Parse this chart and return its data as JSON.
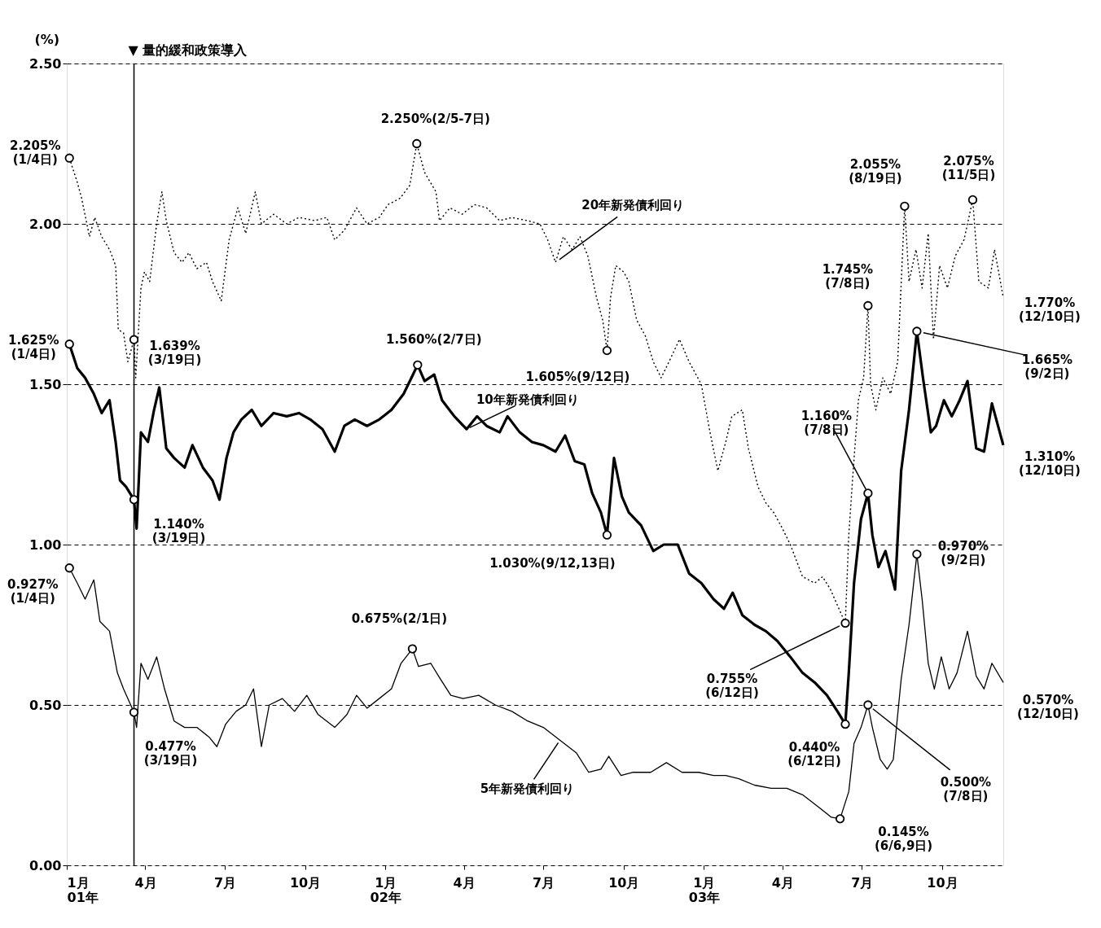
{
  "chart_data": {
    "type": "line",
    "ylabel": "(%)",
    "xlim": [
      "2001-01-01",
      "2003-12-10"
    ],
    "xticks": [
      {
        "value": "2001-01-01",
        "label": "1月\n01年"
      },
      {
        "value": "2001-04-01",
        "label": "4月"
      },
      {
        "value": "2001-07-01",
        "label": "7月"
      },
      {
        "value": "2001-10-01",
        "label": "10月"
      },
      {
        "value": "2002-01-01",
        "label": "1月\n02年"
      },
      {
        "value": "2002-04-01",
        "label": "4月"
      },
      {
        "value": "2002-07-01",
        "label": "7月"
      },
      {
        "value": "2002-10-01",
        "label": "10月"
      },
      {
        "value": "2003-01-01",
        "label": "1月\n03年"
      },
      {
        "value": "2003-04-01",
        "label": "4月"
      },
      {
        "value": "2003-07-01",
        "label": "7月"
      },
      {
        "value": "2003-10-01",
        "label": "10月"
      }
    ],
    "ylim": [
      0,
      2.5
    ],
    "yticks": [
      {
        "value": 0,
        "label": "0.00"
      },
      {
        "value": 0.5,
        "label": "0.50"
      },
      {
        "value": 1,
        "label": "1.00"
      },
      {
        "value": 1.5,
        "label": "1.50"
      },
      {
        "value": 2,
        "label": "2.00"
      },
      {
        "value": 2.5,
        "label": "2.50"
      }
    ],
    "grid": "y",
    "ref_lines": [
      {
        "axis": "x",
        "value": "2001-03-19",
        "label": "▼ 量的緩和政策導入"
      }
    ],
    "series": [
      {
        "name": "20年新発債利回り",
        "color": "#000000",
        "line_style": "dotted",
        "x": [
          "2001-01-04",
          "2001-01-13",
          "2001-01-18",
          "2001-01-27",
          "2001-02-02",
          "2001-02-10",
          "2001-02-19",
          "2001-02-26",
          "2001-03-01",
          "2001-03-07",
          "2001-03-12",
          "2001-03-19",
          "2001-03-21",
          "2001-03-27",
          "2001-03-31",
          "2001-04-06",
          "2001-04-14",
          "2001-04-20",
          "2001-04-25",
          "2001-05-04",
          "2001-05-13",
          "2001-05-21",
          "2001-05-30",
          "2001-06-10",
          "2001-06-17",
          "2001-06-27",
          "2001-07-06",
          "2001-07-16",
          "2001-07-25",
          "2001-08-05",
          "2001-08-12",
          "2001-08-26",
          "2001-09-10",
          "2001-09-24",
          "2001-10-12",
          "2001-10-26",
          "2001-11-04",
          "2001-11-15",
          "2001-11-29",
          "2001-12-11",
          "2001-12-25",
          "2002-01-04",
          "2002-01-18",
          "2002-01-29",
          "2002-02-06",
          "2002-02-15",
          "2002-02-28",
          "2002-03-04",
          "2002-03-16",
          "2002-03-30",
          "2002-04-13",
          "2002-04-27",
          "2002-05-12",
          "2002-05-26",
          "2002-06-13",
          "2002-06-27",
          "2002-07-06",
          "2002-07-15",
          "2002-07-24",
          "2002-08-03",
          "2002-08-12",
          "2002-08-21",
          "2002-08-31",
          "2002-09-07",
          "2002-09-12",
          "2002-09-16",
          "2002-09-22",
          "2002-10-01",
          "2002-10-07",
          "2002-10-16",
          "2002-10-26",
          "2002-11-04",
          "2002-11-13",
          "2002-11-22",
          "2002-12-04",
          "2002-12-15",
          "2002-12-29",
          "2003-01-08",
          "2003-01-17",
          "2003-01-26",
          "2003-02-02",
          "2003-02-14",
          "2003-02-21",
          "2003-03-04",
          "2003-03-13",
          "2003-03-22",
          "2003-04-01",
          "2003-04-10",
          "2003-04-24",
          "2003-05-08",
          "2003-05-17",
          "2003-05-26",
          "2003-06-12",
          "2003-06-16",
          "2003-06-21",
          "2003-06-27",
          "2003-07-03",
          "2003-07-08",
          "2003-07-11",
          "2003-07-17",
          "2003-07-25",
          "2003-08-03",
          "2003-08-11",
          "2003-08-19",
          "2003-08-24",
          "2003-09-01",
          "2003-09-08",
          "2003-09-15",
          "2003-09-21",
          "2003-09-28",
          "2003-10-07",
          "2003-10-16",
          "2003-10-26",
          "2003-11-05",
          "2003-11-12",
          "2003-11-23",
          "2003-11-30",
          "2003-12-10"
        ],
        "values": [
          2.205,
          2.13,
          2.08,
          1.96,
          2.02,
          1.96,
          1.92,
          1.87,
          1.67,
          1.66,
          1.57,
          1.639,
          1.52,
          1.8,
          1.85,
          1.82,
          2.0,
          2.1,
          2.01,
          1.91,
          1.88,
          1.91,
          1.86,
          1.88,
          1.82,
          1.76,
          1.95,
          2.05,
          1.97,
          2.1,
          2.0,
          2.03,
          2.0,
          2.02,
          2.01,
          2.02,
          1.95,
          1.98,
          2.05,
          2.0,
          2.02,
          2.06,
          2.08,
          2.12,
          2.25,
          2.16,
          2.1,
          2.01,
          2.05,
          2.03,
          2.06,
          2.05,
          2.01,
          2.02,
          2.01,
          2.0,
          1.95,
          1.88,
          1.96,
          1.92,
          1.96,
          1.9,
          1.77,
          1.7,
          1.605,
          1.77,
          1.87,
          1.85,
          1.82,
          1.7,
          1.65,
          1.57,
          1.52,
          1.57,
          1.64,
          1.57,
          1.5,
          1.35,
          1.23,
          1.32,
          1.4,
          1.42,
          1.3,
          1.18,
          1.13,
          1.1,
          1.05,
          1.0,
          0.9,
          0.88,
          0.9,
          0.86,
          0.755,
          1.03,
          1.23,
          1.45,
          1.52,
          1.745,
          1.5,
          1.42,
          1.52,
          1.47,
          1.57,
          2.055,
          1.82,
          1.92,
          1.8,
          1.97,
          1.64,
          1.87,
          1.8,
          1.9,
          1.95,
          2.075,
          1.82,
          1.8,
          1.92,
          1.77
        ]
      },
      {
        "name": "10年新発債利回り",
        "color": "#000000",
        "line_style": "solid",
        "x": [
          "2001-01-04",
          "2001-01-13",
          "2001-01-22",
          "2001-02-01",
          "2001-02-10",
          "2001-02-19",
          "2001-02-26",
          "2001-03-03",
          "2001-03-10",
          "2001-03-19",
          "2001-03-22",
          "2001-03-27",
          "2001-04-04",
          "2001-04-11",
          "2001-04-17",
          "2001-04-25",
          "2001-05-04",
          "2001-05-16",
          "2001-05-25",
          "2001-06-06",
          "2001-06-17",
          "2001-06-25",
          "2001-07-03",
          "2001-07-11",
          "2001-07-20",
          "2001-08-01",
          "2001-08-12",
          "2001-08-26",
          "2001-09-10",
          "2001-09-24",
          "2001-10-07",
          "2001-10-21",
          "2001-11-04",
          "2001-11-15",
          "2001-11-27",
          "2001-12-11",
          "2001-12-25",
          "2002-01-08",
          "2002-01-22",
          "2002-02-07",
          "2002-02-15",
          "2002-02-26",
          "2002-03-07",
          "2002-03-21",
          "2002-04-04",
          "2002-04-16",
          "2002-04-27",
          "2002-05-12",
          "2002-05-21",
          "2002-06-04",
          "2002-06-18",
          "2002-07-01",
          "2002-07-15",
          "2002-07-26",
          "2002-08-06",
          "2002-08-17",
          "2002-08-26",
          "2002-09-05",
          "2002-09-12",
          "2002-09-20",
          "2002-09-29",
          "2002-10-07",
          "2002-10-21",
          "2002-11-04",
          "2002-11-16",
          "2002-12-02",
          "2002-12-15",
          "2002-12-29",
          "2003-01-12",
          "2003-01-24",
          "2003-02-03",
          "2003-02-14",
          "2003-02-28",
          "2003-03-13",
          "2003-03-26",
          "2003-04-10",
          "2003-04-24",
          "2003-05-08",
          "2003-05-22",
          "2003-06-03",
          "2003-06-12",
          "2003-06-16",
          "2003-06-22",
          "2003-06-30",
          "2003-07-08",
          "2003-07-13",
          "2003-07-20",
          "2003-07-28",
          "2003-08-08",
          "2003-08-15",
          "2003-08-24",
          "2003-09-02",
          "2003-09-09",
          "2003-09-18",
          "2003-09-24",
          "2003-10-03",
          "2003-10-12",
          "2003-10-21",
          "2003-10-30",
          "2003-11-09",
          "2003-11-18",
          "2003-11-27",
          "2003-12-10"
        ],
        "values": [
          1.625,
          1.55,
          1.52,
          1.47,
          1.41,
          1.45,
          1.32,
          1.2,
          1.18,
          1.14,
          1.05,
          1.35,
          1.32,
          1.42,
          1.49,
          1.3,
          1.27,
          1.24,
          1.31,
          1.24,
          1.2,
          1.14,
          1.27,
          1.35,
          1.39,
          1.42,
          1.37,
          1.41,
          1.4,
          1.41,
          1.39,
          1.36,
          1.29,
          1.37,
          1.39,
          1.37,
          1.39,
          1.42,
          1.47,
          1.56,
          1.51,
          1.53,
          1.45,
          1.4,
          1.36,
          1.4,
          1.37,
          1.35,
          1.4,
          1.35,
          1.32,
          1.31,
          1.29,
          1.34,
          1.26,
          1.25,
          1.16,
          1.1,
          1.03,
          1.27,
          1.15,
          1.1,
          1.06,
          0.98,
          1.0,
          1.0,
          0.91,
          0.88,
          0.83,
          0.8,
          0.85,
          0.78,
          0.75,
          0.73,
          0.7,
          0.65,
          0.6,
          0.57,
          0.53,
          0.48,
          0.44,
          0.6,
          0.88,
          1.08,
          1.16,
          1.03,
          0.93,
          0.98,
          0.86,
          1.23,
          1.42,
          1.665,
          1.52,
          1.35,
          1.37,
          1.45,
          1.4,
          1.45,
          1.51,
          1.3,
          1.29,
          1.44,
          1.31
        ]
      },
      {
        "name": "5年新発債利回り",
        "color": "#000000",
        "line_style": "solid",
        "x": [
          "2001-01-04",
          "2001-01-13",
          "2001-01-22",
          "2001-02-01",
          "2001-02-08",
          "2001-02-19",
          "2001-02-28",
          "2001-03-07",
          "2001-03-19",
          "2001-03-22",
          "2001-03-27",
          "2001-04-04",
          "2001-04-14",
          "2001-04-23",
          "2001-05-04",
          "2001-05-16",
          "2001-05-30",
          "2001-06-13",
          "2001-06-22",
          "2001-07-02",
          "2001-07-14",
          "2001-07-25",
          "2001-08-03",
          "2001-08-12",
          "2001-08-21",
          "2001-09-05",
          "2001-09-19",
          "2001-10-03",
          "2001-10-16",
          "2001-11-04",
          "2001-11-18",
          "2001-11-29",
          "2001-12-11",
          "2001-12-25",
          "2002-01-08",
          "2002-01-19",
          "2002-02-01",
          "2002-02-08",
          "2002-02-22",
          "2002-03-03",
          "2002-03-17",
          "2002-03-31",
          "2002-04-18",
          "2002-05-07",
          "2002-05-26",
          "2002-06-13",
          "2002-07-01",
          "2002-07-20",
          "2002-08-08",
          "2002-08-22",
          "2002-09-05",
          "2002-09-14",
          "2002-09-28",
          "2002-10-12",
          "2002-11-01",
          "2002-11-19",
          "2002-12-07",
          "2002-12-26",
          "2003-01-12",
          "2003-01-26",
          "2003-02-10",
          "2003-02-28",
          "2003-03-19",
          "2003-04-06",
          "2003-04-24",
          "2003-05-13",
          "2003-05-27",
          "2003-06-06",
          "2003-06-16",
          "2003-06-22",
          "2003-06-30",
          "2003-07-08",
          "2003-07-13",
          "2003-07-22",
          "2003-07-30",
          "2003-08-06",
          "2003-08-15",
          "2003-08-24",
          "2003-09-02",
          "2003-09-08",
          "2003-09-15",
          "2003-09-22",
          "2003-09-30",
          "2003-10-09",
          "2003-10-18",
          "2003-10-30",
          "2003-11-09",
          "2003-11-18",
          "2003-11-27",
          "2003-12-10"
        ],
        "values": [
          0.927,
          0.88,
          0.83,
          0.89,
          0.76,
          0.73,
          0.6,
          0.55,
          0.477,
          0.43,
          0.63,
          0.58,
          0.65,
          0.55,
          0.45,
          0.43,
          0.43,
          0.4,
          0.37,
          0.44,
          0.48,
          0.5,
          0.55,
          0.37,
          0.5,
          0.52,
          0.48,
          0.53,
          0.47,
          0.43,
          0.47,
          0.53,
          0.49,
          0.52,
          0.55,
          0.63,
          0.675,
          0.62,
          0.63,
          0.59,
          0.53,
          0.52,
          0.53,
          0.5,
          0.48,
          0.45,
          0.43,
          0.39,
          0.35,
          0.29,
          0.3,
          0.34,
          0.28,
          0.29,
          0.29,
          0.32,
          0.29,
          0.29,
          0.28,
          0.28,
          0.27,
          0.25,
          0.24,
          0.24,
          0.22,
          0.18,
          0.15,
          0.145,
          0.23,
          0.38,
          0.43,
          0.5,
          0.43,
          0.33,
          0.3,
          0.33,
          0.58,
          0.75,
          0.97,
          0.83,
          0.63,
          0.55,
          0.65,
          0.55,
          0.6,
          0.73,
          0.59,
          0.55,
          0.63,
          0.57
        ]
      }
    ],
    "annotations": [
      {
        "text": "2.205%\n(1/4日)",
        "x": "2001-01-04",
        "y": 2.205
      },
      {
        "text": "1.625%\n(1/4日)",
        "x": "2001-01-04",
        "y": 1.625
      },
      {
        "text": "0.927%\n(1/4日)",
        "x": "2001-01-04",
        "y": 0.927
      },
      {
        "text": "1.639%\n(3/19日)",
        "x": "2001-03-19",
        "y": 1.639
      },
      {
        "text": "1.140%\n(3/19日)",
        "x": "2001-03-19",
        "y": 1.14
      },
      {
        "text": "0.477%\n(3/19日)",
        "x": "2001-03-19",
        "y": 0.477
      },
      {
        "text": "2.250%(2/5-7日)",
        "x": "2002-02-06",
        "y": 2.25
      },
      {
        "text": "1.560%(2/7日)",
        "x": "2002-02-07",
        "y": 1.56
      },
      {
        "text": "0.675%(2/1日)",
        "x": "2002-02-01",
        "y": 0.675
      },
      {
        "text": "1.605%(9/12日)",
        "x": "2002-09-12",
        "y": 1.605
      },
      {
        "text": "1.030%(9/12,13日)",
        "x": "2002-09-12",
        "y": 1.03
      },
      {
        "text": "0.755%\n(6/12日)",
        "x": "2003-06-12",
        "y": 0.755
      },
      {
        "text": "0.440%\n(6/12日)",
        "x": "2003-06-12",
        "y": 0.44
      },
      {
        "text": "0.145%\n(6/6,9日)",
        "x": "2003-06-06",
        "y": 0.145
      },
      {
        "text": "1.160%\n(7/8日)",
        "x": "2003-07-08",
        "y": 1.16
      },
      {
        "text": "1.745%\n(7/8日)",
        "x": "2003-07-08",
        "y": 1.745
      },
      {
        "text": "0.500%\n(7/8日)",
        "x": "2003-07-08",
        "y": 0.5
      },
      {
        "text": "2.055%\n(8/19日)",
        "x": "2003-08-19",
        "y": 2.055
      },
      {
        "text": "2.075%\n(11/5日)",
        "x": "2003-11-05",
        "y": 2.075
      },
      {
        "text": "1.665%\n(9/2日)",
        "x": "2003-09-02",
        "y": 1.665
      },
      {
        "text": "0.970%\n(9/2日)",
        "x": "2003-09-02",
        "y": 0.97
      },
      {
        "text": "1.770%\n(12/10日)",
        "x": "2003-12-10",
        "y": 1.77
      },
      {
        "text": "1.310%\n(12/10日)",
        "x": "2003-12-10",
        "y": 1.31
      },
      {
        "text": "0.570%\n(12/10日)",
        "x": "2003-12-10",
        "y": 0.57
      }
    ]
  }
}
